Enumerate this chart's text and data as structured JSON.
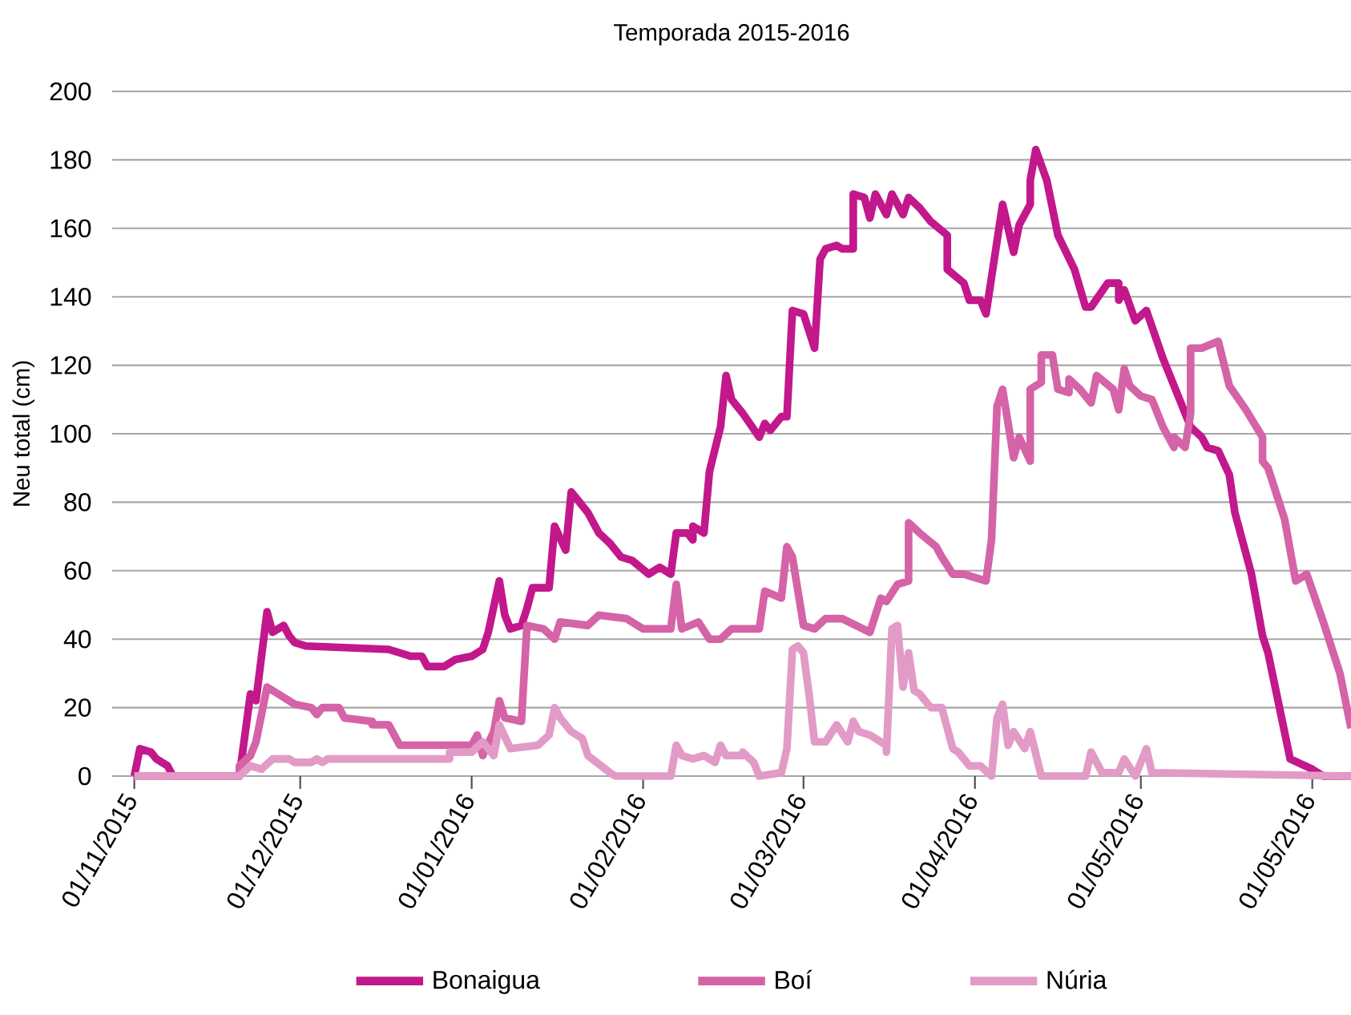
{
  "chart_data": {
    "type": "line",
    "title": "Temporada 2015-2016",
    "ylabel": "Neu total (cm)",
    "xlim": [
      "2015-10-28",
      "2016-06-08"
    ],
    "ylim": [
      0,
      200
    ],
    "xticks": [
      {
        "value": "2015-11-01",
        "label": "01/11/2015"
      },
      {
        "value": "2015-12-01",
        "label": "01/12/2015"
      },
      {
        "value": "2016-01-01",
        "label": "01/01/2016"
      },
      {
        "value": "2016-02-01",
        "label": "01/02/2016"
      },
      {
        "value": "2016-03-01",
        "label": "01/03/2016"
      },
      {
        "value": "2016-04-01",
        "label": "01/04/2016"
      },
      {
        "value": "2016-05-01",
        "label": "01/05/2016"
      },
      {
        "value": "2016-06-01",
        "label": "01/05/2016"
      }
    ],
    "yticks": [
      0,
      20,
      40,
      60,
      80,
      100,
      120,
      140,
      160,
      180,
      200
    ],
    "grid": "y",
    "legend": "bottom",
    "marker": "none",
    "line_style": "solid",
    "series": [
      {
        "name": "Bonaigua",
        "color": "#c2188b",
        "x": [
          "2015-11-01",
          "2015-11-02",
          "2015-11-04",
          "2015-11-05",
          "2015-11-07",
          "2015-11-08",
          "2015-11-20",
          "2015-11-22",
          "2015-11-23",
          "2015-11-25",
          "2015-11-26",
          "2015-11-28",
          "2015-11-29",
          "2015-11-30",
          "2015-12-02",
          "2015-12-17",
          "2015-12-19",
          "2015-12-21",
          "2015-12-23",
          "2015-12-24",
          "2015-12-27",
          "2015-12-29",
          "2016-01-01",
          "2016-01-03",
          "2016-01-04",
          "2016-01-06",
          "2016-01-07",
          "2016-01-08",
          "2016-01-10",
          "2016-01-11",
          "2016-01-12",
          "2016-01-15",
          "2016-01-16",
          "2016-01-18",
          "2016-01-19",
          "2016-01-20",
          "2016-01-22",
          "2016-01-24",
          "2016-01-26",
          "2016-01-28",
          "2016-01-30",
          "2016-02-02",
          "2016-02-04",
          "2016-02-06",
          "2016-02-07",
          "2016-02-09",
          "2016-02-10",
          "2016-02-10",
          "2016-02-12",
          "2016-02-13",
          "2016-02-15",
          "2016-02-16",
          "2016-02-17",
          "2016-02-19",
          "2016-02-22",
          "2016-02-23",
          "2016-02-24",
          "2016-02-26",
          "2016-02-27",
          "2016-02-28",
          "2016-03-01",
          "2016-03-02",
          "2016-03-03",
          "2016-03-04",
          "2016-03-05",
          "2016-03-07",
          "2016-03-08",
          "2016-03-10",
          "2016-03-10",
          "2016-03-12",
          "2016-03-13",
          "2016-03-14",
          "2016-03-16",
          "2016-03-17",
          "2016-03-19",
          "2016-03-20",
          "2016-03-22",
          "2016-03-24",
          "2016-03-27",
          "2016-03-27",
          "2016-03-30",
          "2016-03-31",
          "2016-04-02",
          "2016-04-03",
          "2016-04-06",
          "2016-04-08",
          "2016-04-09",
          "2016-04-11",
          "2016-04-11",
          "2016-04-12",
          "2016-04-14",
          "2016-04-16",
          "2016-04-19",
          "2016-04-21",
          "2016-04-22",
          "2016-04-25",
          "2016-04-27",
          "2016-04-27",
          "2016-04-28",
          "2016-04-30",
          "2016-05-02",
          "2016-05-05",
          "2016-05-08",
          "2016-05-10",
          "2016-05-12",
          "2016-05-13",
          "2016-05-15",
          "2016-05-17",
          "2016-05-18",
          "2016-05-21",
          "2016-05-23",
          "2016-05-24",
          "2016-05-28",
          "2016-06-01",
          "2016-06-03",
          "2016-06-08"
        ],
        "values": [
          0,
          8,
          7,
          5,
          3,
          0,
          0,
          24,
          22,
          48,
          42,
          44,
          41,
          39,
          38,
          37,
          36,
          35,
          35,
          32,
          32,
          34,
          35,
          37,
          42,
          57,
          47,
          43,
          44,
          49,
          55,
          55,
          73,
          66,
          83,
          81,
          77,
          71,
          68,
          64,
          63,
          59,
          61,
          59,
          71,
          71,
          69,
          73,
          71,
          89,
          102,
          117,
          110,
          106,
          99,
          103,
          101,
          105,
          105,
          136,
          135,
          130,
          125,
          151,
          154,
          155,
          154,
          154,
          170,
          169,
          163,
          170,
          164,
          170,
          164,
          169,
          166,
          162,
          158,
          148,
          144,
          139,
          139,
          135,
          167,
          153,
          161,
          167,
          174,
          183,
          174,
          158,
          148,
          137,
          137,
          144,
          144,
          139,
          142,
          133,
          136,
          122,
          110,
          102,
          99,
          96,
          95,
          88,
          77,
          59,
          41,
          36,
          5,
          2,
          0,
          0
        ]
      },
      {
        "name": "Boí",
        "color": "#d563a7",
        "x": [
          "2015-11-01",
          "2015-11-20",
          "2015-11-20",
          "2015-11-22",
          "2015-11-23",
          "2015-11-25",
          "2015-11-27",
          "2015-11-30",
          "2015-12-03",
          "2015-12-04",
          "2015-12-05",
          "2015-12-08",
          "2015-12-09",
          "2015-12-14",
          "2015-12-14",
          "2015-12-17",
          "2015-12-19",
          "2016-01-01",
          "2016-01-02",
          "2016-01-03",
          "2016-01-05",
          "2016-01-06",
          "2016-01-07",
          "2016-01-10",
          "2016-01-11",
          "2016-01-14",
          "2016-01-16",
          "2016-01-17",
          "2016-01-22",
          "2016-01-24",
          "2016-01-29",
          "2016-02-01",
          "2016-02-06",
          "2016-02-07",
          "2016-02-08",
          "2016-02-11",
          "2016-02-13",
          "2016-02-15",
          "2016-02-17",
          "2016-02-22",
          "2016-02-23",
          "2016-02-26",
          "2016-02-27",
          "2016-02-28",
          "2016-03-01",
          "2016-03-03",
          "2016-03-05",
          "2016-03-08",
          "2016-03-13",
          "2016-03-15",
          "2016-03-16",
          "2016-03-18",
          "2016-03-20",
          "2016-03-20",
          "2016-03-22",
          "2016-03-25",
          "2016-03-26",
          "2016-03-28",
          "2016-03-30",
          "2016-04-01",
          "2016-04-03",
          "2016-04-04",
          "2016-04-05",
          "2016-04-06",
          "2016-04-08",
          "2016-04-09",
          "2016-04-11",
          "2016-04-11",
          "2016-04-13",
          "2016-04-13",
          "2016-04-15",
          "2016-04-16",
          "2016-04-18",
          "2016-04-18",
          "2016-04-20",
          "2016-04-22",
          "2016-04-23",
          "2016-04-26",
          "2016-04-27",
          "2016-04-28",
          "2016-04-29",
          "2016-05-01",
          "2016-05-03",
          "2016-05-05",
          "2016-05-07",
          "2016-05-07",
          "2016-05-09",
          "2016-05-10",
          "2016-05-10",
          "2016-05-12",
          "2016-05-15",
          "2016-05-17",
          "2016-05-20",
          "2016-05-23",
          "2016-05-23",
          "2016-05-24",
          "2016-05-27",
          "2016-05-29",
          "2016-05-31",
          "2016-06-03",
          "2016-06-06",
          "2016-06-08"
        ],
        "values": [
          0,
          0,
          3,
          6,
          10,
          26,
          24,
          21,
          20,
          18,
          20,
          20,
          17,
          16,
          15,
          15,
          9,
          9,
          12,
          6,
          13,
          22,
          17,
          16,
          44,
          43,
          40,
          45,
          44,
          47,
          46,
          43,
          43,
          56,
          43,
          45,
          40,
          40,
          43,
          43,
          54,
          52,
          67,
          64,
          44,
          43,
          46,
          46,
          42,
          52,
          51,
          56,
          57,
          74,
          71,
          67,
          64,
          59,
          59,
          58,
          57,
          69,
          108,
          113,
          93,
          99,
          92,
          113,
          115,
          123,
          123,
          113,
          112,
          116,
          113,
          109,
          117,
          113,
          107,
          119,
          114,
          111,
          110,
          102,
          96,
          99,
          96,
          106,
          125,
          125,
          127,
          114,
          107,
          99,
          92,
          90,
          75,
          57,
          59,
          45,
          30,
          14
        ]
      },
      {
        "name": "Núria",
        "color": "#e29bc6",
        "x": [
          "2015-11-01",
          "2015-11-20",
          "2015-11-22",
          "2015-11-24",
          "2015-11-26",
          "2015-11-29",
          "2015-11-30",
          "2015-12-03",
          "2015-12-04",
          "2015-12-05",
          "2015-12-06",
          "2015-12-28",
          "2015-12-28",
          "2016-01-01",
          "2016-01-03",
          "2016-01-05",
          "2016-01-06",
          "2016-01-08",
          "2016-01-13",
          "2016-01-15",
          "2016-01-16",
          "2016-01-17",
          "2016-01-19",
          "2016-01-21",
          "2016-01-22",
          "2016-01-26",
          "2016-01-27",
          "2016-02-06",
          "2016-02-07",
          "2016-02-08",
          "2016-02-10",
          "2016-02-12",
          "2016-02-14",
          "2016-02-15",
          "2016-02-16",
          "2016-02-19",
          "2016-02-19",
          "2016-02-21",
          "2016-02-22",
          "2016-02-26",
          "2016-02-27",
          "2016-02-28",
          "2016-02-29",
          "2016-03-01",
          "2016-03-02",
          "2016-03-03",
          "2016-03-05",
          "2016-03-07",
          "2016-03-09",
          "2016-03-10",
          "2016-03-11",
          "2016-03-13",
          "2016-03-16",
          "2016-03-16",
          "2016-03-17",
          "2016-03-18",
          "2016-03-19",
          "2016-03-20",
          "2016-03-21",
          "2016-03-22",
          "2016-03-24",
          "2016-03-26",
          "2016-03-27",
          "2016-03-28",
          "2016-03-29",
          "2016-03-31",
          "2016-04-02",
          "2016-04-04",
          "2016-04-05",
          "2016-04-06",
          "2016-04-07",
          "2016-04-08",
          "2016-04-10",
          "2016-04-11",
          "2016-04-13",
          "2016-04-21",
          "2016-04-22",
          "2016-04-24",
          "2016-04-27",
          "2016-04-28",
          "2016-04-30",
          "2016-05-02",
          "2016-05-03",
          "2016-06-08"
        ],
        "values": [
          0,
          0,
          3,
          2,
          5,
          5,
          4,
          4,
          5,
          4,
          5,
          5,
          7,
          7,
          10,
          6,
          15,
          8,
          9,
          12,
          20,
          17,
          13,
          11,
          6,
          1,
          0,
          0,
          9,
          6,
          5,
          6,
          4,
          9,
          6,
          6,
          7,
          4,
          0,
          1,
          8,
          37,
          38,
          36,
          24,
          10,
          10,
          15,
          10,
          16,
          13,
          12,
          9,
          7,
          43,
          44,
          26,
          36,
          25,
          24,
          20,
          20,
          14,
          8,
          7,
          3,
          3,
          0,
          17,
          21,
          9,
          13,
          8,
          13,
          0,
          0,
          7,
          1,
          1,
          5,
          0,
          8,
          1,
          0
        ]
      }
    ]
  }
}
